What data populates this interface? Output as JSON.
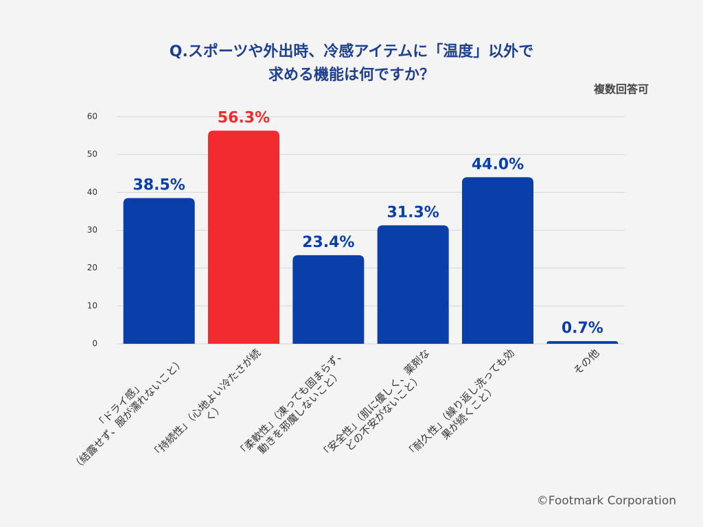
{
  "chart_data": {
    "type": "bar",
    "title": [
      "Q.スポーツや外出時、冷感アイテムに「温度」以外で",
      "求める機能は何ですか？"
    ],
    "subtitle": "複数回答可",
    "source": "©Footmark Corporation",
    "categories": [
      [
        "「ドライ感」",
        "（結露せず、服が濡れないこと）"
      ],
      [
        "「持続性」（心地よい冷たさが続",
        "く）"
      ],
      [
        "「柔軟性」（凍っても固まらず、",
        "動きを邪魔しないこと）"
      ],
      [
        "「安全性」（肌に優しく、薬剤な",
        "どの不安がないこと）"
      ],
      [
        "「耐久性」（繰り返し洗っても効",
        "果が続くこと）"
      ],
      [
        "その他"
      ]
    ],
    "values": [
      38.5,
      56.3,
      23.4,
      31.3,
      44.0,
      0.7
    ],
    "value_labels": [
      "38.5%",
      "56.3%",
      "23.4%",
      "31.3%",
      "44.0%",
      "0.7%"
    ],
    "colors": [
      "#0a3ea8",
      "#f22b31",
      "#0a3ea8",
      "#0a3ea8",
      "#0a3ea8",
      "#0a3ea8"
    ],
    "ylim": [
      0,
      60
    ],
    "yticks": [
      0,
      10,
      20,
      30,
      40,
      50,
      60
    ],
    "grid": true
  }
}
